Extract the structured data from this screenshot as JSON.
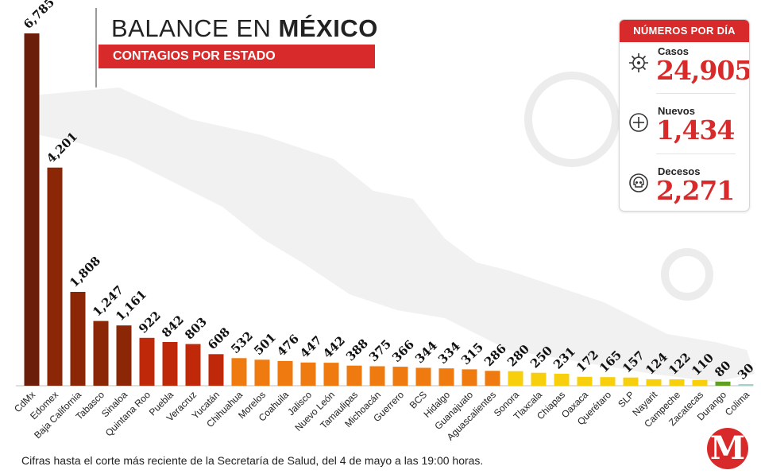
{
  "header": {
    "title_prefix": "BALANCE EN ",
    "title_bold": "MÉXICO",
    "subtitle": "CONTAGIOS POR ESTADO"
  },
  "stats": {
    "header": "NÚMEROS POR DÍA",
    "items": [
      {
        "label": "Casos",
        "value": "24,905",
        "icon": "virus-icon"
      },
      {
        "label": "Nuevos",
        "value": "1,434",
        "icon": "plus-circle-icon"
      },
      {
        "label": "Decesos",
        "value": "2,271",
        "icon": "skull-icon"
      }
    ]
  },
  "footnote": "Cifras hasta el corte más reciente de la Secretaría de Salud, del 4 de mayo a las 19:00 horas.",
  "logo": {
    "letter": "M"
  },
  "colors": {
    "accent": "#d82a2a",
    "dark_brown": "#6b1f0a",
    "brown": "#8b2606",
    "dark_red": "#c0280a",
    "orange": "#ee7a10",
    "yellow": "#f7cf0c",
    "green": "#5f9f22",
    "teal": "#9fd3cb"
  },
  "chart_data": {
    "type": "bar",
    "categories": [
      "CdMx",
      "Edomex",
      "Baja California",
      "Tabasco",
      "Sinaloa",
      "Quintana Roo",
      "Puebla",
      "Veracruz",
      "Yucatán",
      "Chihuahua",
      "Morelos",
      "Coahuila",
      "Jalisco",
      "Nuevo León",
      "Tamaulipas",
      "Michoacán",
      "Guerrero",
      "BCS",
      "Hidalgo",
      "Guanajuato",
      "Aguascalientes",
      "Sonora",
      "Tlaxcala",
      "Chiapas",
      "Oaxaca",
      "Querétaro",
      "SLP",
      "Nayarit",
      "Campeche",
      "Zacatecas",
      "Durango",
      "Colima"
    ],
    "values": [
      6785,
      4201,
      1808,
      1247,
      1161,
      922,
      842,
      803,
      608,
      532,
      501,
      476,
      447,
      442,
      388,
      375,
      366,
      344,
      334,
      315,
      286,
      280,
      250,
      231,
      172,
      165,
      157,
      124,
      122,
      110,
      80,
      30
    ],
    "value_labels": [
      "6,785",
      "4,201",
      "1,808",
      "1,247",
      "1,161",
      "922",
      "842",
      "803",
      "608",
      "532",
      "501",
      "476",
      "447",
      "442",
      "388",
      "375",
      "366",
      "344",
      "334",
      "315",
      "286",
      "280",
      "250",
      "231",
      "172",
      "165",
      "157",
      "124",
      "122",
      "110",
      "80",
      "30"
    ],
    "bar_colors": [
      "#6b1f0a",
      "#8b2606",
      "#8b2606",
      "#8b2606",
      "#8b2606",
      "#c0280a",
      "#c0280a",
      "#c0280a",
      "#c0280a",
      "#ee7a10",
      "#ee7a10",
      "#ee7a10",
      "#ee7a10",
      "#ee7a10",
      "#ee7a10",
      "#ee7a10",
      "#ee7a10",
      "#ee7a10",
      "#ee7a10",
      "#ee7a10",
      "#ee7a10",
      "#f7cf0c",
      "#f7cf0c",
      "#f7cf0c",
      "#f7cf0c",
      "#f7cf0c",
      "#f7cf0c",
      "#f7cf0c",
      "#f7cf0c",
      "#f7cf0c",
      "#5f9f22",
      "#9fd3cb"
    ],
    "ylim": [
      0,
      6785
    ],
    "grid": false,
    "legend": "none"
  }
}
